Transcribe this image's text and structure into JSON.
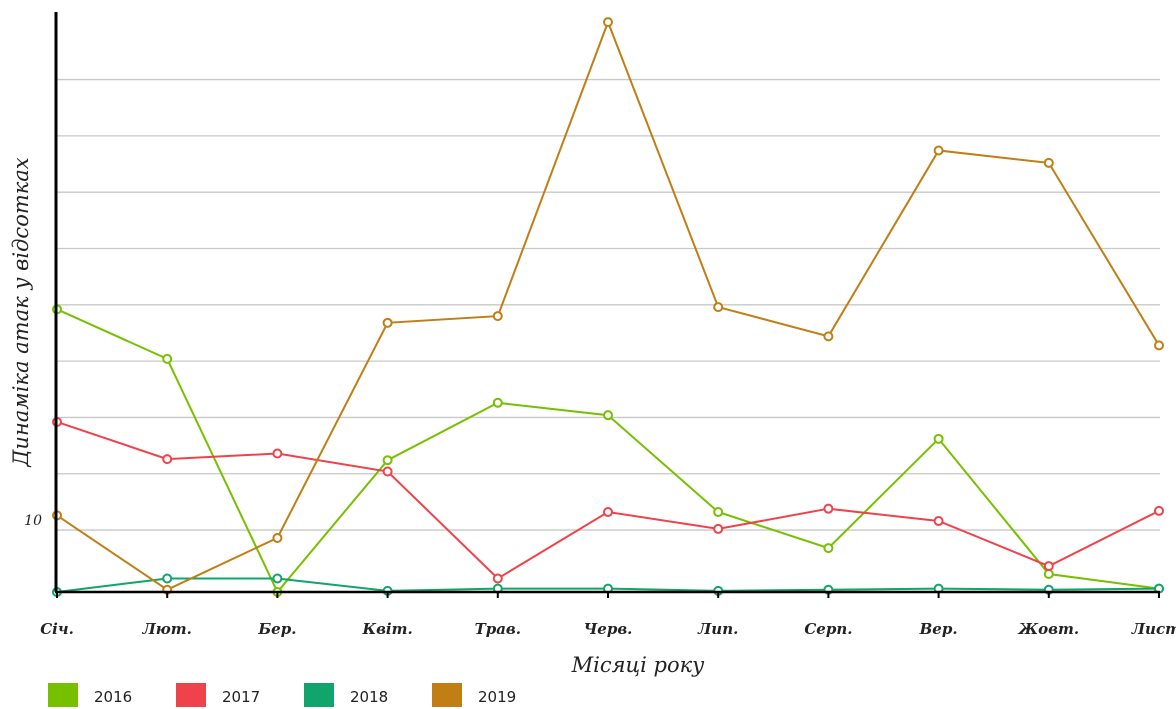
{
  "chart_data": {
    "type": "line",
    "xlabel": "Місяці року",
    "ylabel": "Динаміка атак у відсотках",
    "categories": [
      "Січ.",
      "Лют.",
      "Бер.",
      "Квіт.",
      "Трав.",
      "Черв.",
      "Лип.",
      "Серп.",
      "Вер.",
      "Жовт.",
      "Лист."
    ],
    "y_tick_labels": [
      {
        "value": 10,
        "label": "10"
      }
    ],
    "gridlines": [
      10,
      15,
      20,
      25,
      30,
      35,
      40,
      45,
      50
    ],
    "ylim": [
      4.5,
      56
    ],
    "grid": true,
    "legend_position": "bottom-left",
    "series": [
      {
        "name": "2016",
        "color": "#76c000",
        "values": [
          29.6,
          25.2,
          4.5,
          16.2,
          21.3,
          20.2,
          11.6,
          8.4,
          18.1,
          6.1,
          4.8
        ]
      },
      {
        "name": "2017",
        "color": "#f0424a",
        "values": [
          19.6,
          16.3,
          16.8,
          15.2,
          5.7,
          11.6,
          10.1,
          11.9,
          10.8,
          6.8,
          11.7
        ]
      },
      {
        "name": "2018",
        "color": "#11a46c",
        "values": [
          4.5,
          5.7,
          5.7,
          4.6,
          4.8,
          4.8,
          4.6,
          4.7,
          4.8,
          4.7,
          4.8
        ]
      },
      {
        "name": "2019",
        "color": "#c07e14",
        "values": [
          11.3,
          4.7,
          9.3,
          28.4,
          29.0,
          55.1,
          29.8,
          27.2,
          43.7,
          42.6,
          26.4
        ]
      }
    ]
  }
}
